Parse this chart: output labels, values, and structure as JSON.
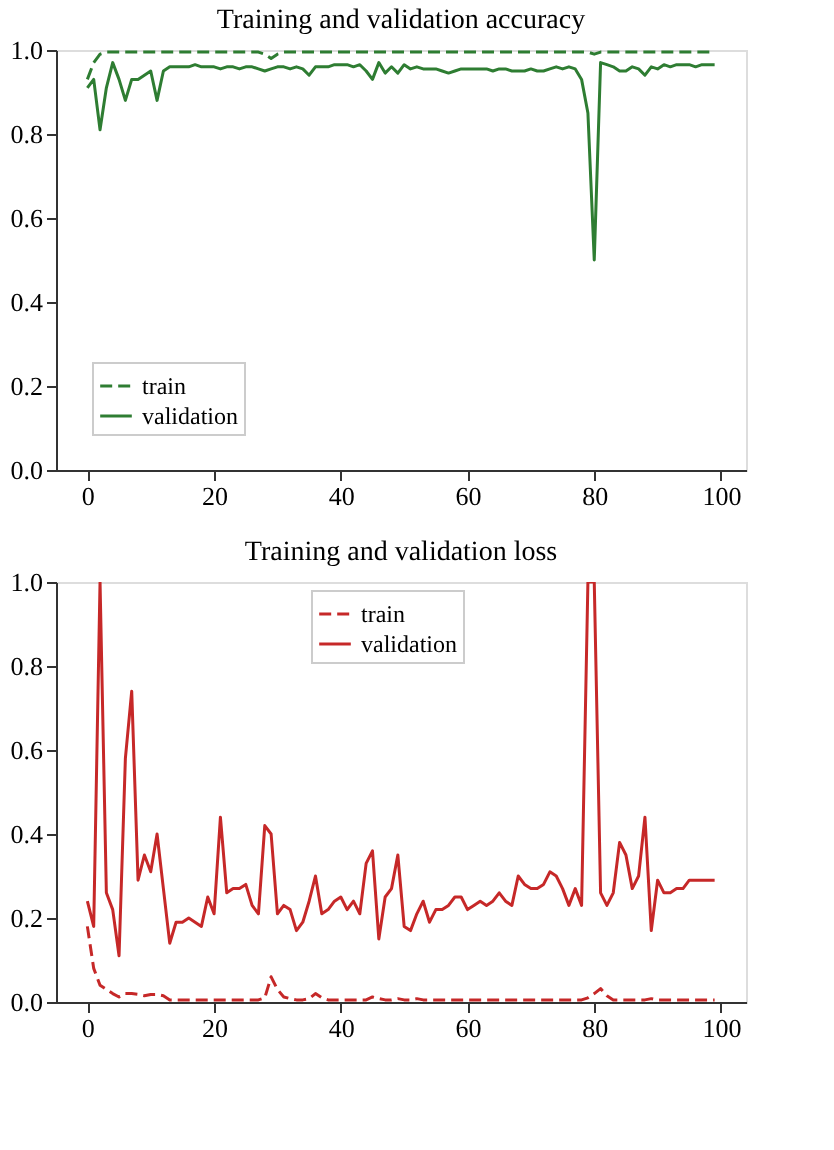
{
  "chart_data": [
    {
      "type": "line",
      "title": "Training and validation accuracy",
      "legend": "bottom left",
      "grid": false,
      "xlim": [
        -4.95,
        103.95
      ],
      "ylim": [
        0,
        1
      ],
      "xticks": [
        0,
        20,
        40,
        60,
        80,
        100
      ],
      "yticks": [
        {
          "value": 0,
          "label": "0.0"
        },
        {
          "value": 0.2,
          "label": "0.2"
        },
        {
          "value": 0.4,
          "label": "0.4"
        },
        {
          "value": 0.6,
          "label": "0.6"
        },
        {
          "value": 0.8,
          "label": "0.8"
        },
        {
          "value": 1,
          "label": "1.0"
        }
      ],
      "x": [
        0,
        1,
        2,
        3,
        4,
        5,
        6,
        7,
        8,
        9,
        10,
        11,
        12,
        13,
        14,
        15,
        16,
        17,
        18,
        19,
        20,
        21,
        22,
        23,
        24,
        25,
        26,
        27,
        28,
        29,
        30,
        31,
        32,
        33,
        34,
        35,
        36,
        37,
        38,
        39,
        40,
        41,
        42,
        43,
        44,
        45,
        46,
        47,
        48,
        49,
        50,
        51,
        52,
        53,
        54,
        55,
        56,
        57,
        58,
        59,
        60,
        61,
        62,
        63,
        64,
        65,
        66,
        67,
        68,
        69,
        70,
        71,
        72,
        73,
        74,
        75,
        76,
        77,
        78,
        79,
        80,
        81,
        82,
        83,
        84,
        85,
        86,
        87,
        88,
        89,
        90,
        91,
        92,
        93,
        94,
        95,
        96,
        97,
        98,
        99
      ],
      "series": [
        {
          "name": "train",
          "color": "#2e7d32",
          "line_style": "dashed",
          "values": [
            0.93,
            0.97,
            0.99,
            0.995,
            0.995,
            0.995,
            0.995,
            0.995,
            0.995,
            0.995,
            0.995,
            0.995,
            0.995,
            0.995,
            0.995,
            0.995,
            0.995,
            0.995,
            0.995,
            0.995,
            0.995,
            0.995,
            0.995,
            0.995,
            0.995,
            0.995,
            0.995,
            0.995,
            0.99,
            0.98,
            0.99,
            0.995,
            0.995,
            0.995,
            0.995,
            0.995,
            0.995,
            0.995,
            0.995,
            0.995,
            0.995,
            0.995,
            0.995,
            0.995,
            0.995,
            0.995,
            0.995,
            0.995,
            0.995,
            0.995,
            0.995,
            0.995,
            0.995,
            0.995,
            0.995,
            0.995,
            0.995,
            0.995,
            0.995,
            0.995,
            0.995,
            0.995,
            0.995,
            0.995,
            0.995,
            0.995,
            0.995,
            0.995,
            0.995,
            0.995,
            0.995,
            0.995,
            0.995,
            0.995,
            0.995,
            0.995,
            0.995,
            0.995,
            0.995,
            0.995,
            0.99,
            0.995,
            0.995,
            0.995,
            0.995,
            0.995,
            0.995,
            0.995,
            0.995,
            0.995,
            0.995,
            0.995,
            0.995,
            0.995,
            0.995,
            0.995,
            0.995,
            0.995,
            0.995,
            0.995
          ]
        },
        {
          "name": "validation",
          "color": "#2e7d32",
          "line_style": "solid",
          "values": [
            0.91,
            0.93,
            0.81,
            0.91,
            0.97,
            0.93,
            0.88,
            0.93,
            0.93,
            0.94,
            0.95,
            0.88,
            0.95,
            0.96,
            0.96,
            0.96,
            0.96,
            0.965,
            0.96,
            0.96,
            0.96,
            0.955,
            0.96,
            0.96,
            0.955,
            0.96,
            0.96,
            0.955,
            0.95,
            0.955,
            0.96,
            0.96,
            0.955,
            0.96,
            0.955,
            0.94,
            0.96,
            0.96,
            0.96,
            0.965,
            0.965,
            0.965,
            0.96,
            0.965,
            0.95,
            0.93,
            0.97,
            0.945,
            0.96,
            0.945,
            0.965,
            0.955,
            0.96,
            0.955,
            0.955,
            0.955,
            0.95,
            0.945,
            0.95,
            0.955,
            0.955,
            0.955,
            0.955,
            0.955,
            0.95,
            0.955,
            0.955,
            0.95,
            0.95,
            0.95,
            0.955,
            0.95,
            0.95,
            0.955,
            0.96,
            0.955,
            0.96,
            0.955,
            0.93,
            0.85,
            0.5,
            0.97,
            0.965,
            0.96,
            0.95,
            0.95,
            0.96,
            0.955,
            0.94,
            0.96,
            0.955,
            0.965,
            0.96,
            0.965,
            0.965,
            0.965,
            0.96,
            0.965,
            0.965,
            0.965
          ]
        }
      ]
    },
    {
      "type": "line",
      "title": "Training and validation loss",
      "legend": "top",
      "grid": false,
      "xlim": [
        -4.95,
        103.95
      ],
      "ylim": [
        0,
        1
      ],
      "xticks": [
        0,
        20,
        40,
        60,
        80,
        100
      ],
      "yticks": [
        {
          "value": 0,
          "label": "0.0"
        },
        {
          "value": 0.2,
          "label": "0.2"
        },
        {
          "value": 0.4,
          "label": "0.4"
        },
        {
          "value": 0.6,
          "label": "0.6"
        },
        {
          "value": 0.8,
          "label": "0.8"
        },
        {
          "value": 1,
          "label": "1.0"
        }
      ],
      "x": [
        0,
        1,
        2,
        3,
        4,
        5,
        6,
        7,
        8,
        9,
        10,
        11,
        12,
        13,
        14,
        15,
        16,
        17,
        18,
        19,
        20,
        21,
        22,
        23,
        24,
        25,
        26,
        27,
        28,
        29,
        30,
        31,
        32,
        33,
        34,
        35,
        36,
        37,
        38,
        39,
        40,
        41,
        42,
        43,
        44,
        45,
        46,
        47,
        48,
        49,
        50,
        51,
        52,
        53,
        54,
        55,
        56,
        57,
        58,
        59,
        60,
        61,
        62,
        63,
        64,
        65,
        66,
        67,
        68,
        69,
        70,
        71,
        72,
        73,
        74,
        75,
        76,
        77,
        78,
        79,
        80,
        81,
        82,
        83,
        84,
        85,
        86,
        87,
        88,
        89,
        90,
        91,
        92,
        93,
        94,
        95,
        96,
        97,
        98,
        99
      ],
      "series": [
        {
          "name": "train",
          "color": "#c62828",
          "line_style": "dashed",
          "values": [
            0.18,
            0.08,
            0.04,
            0.03,
            0.02,
            0.012,
            0.02,
            0.02,
            0.018,
            0.015,
            0.018,
            0.018,
            0.015,
            0.005,
            0.005,
            0.005,
            0.005,
            0.005,
            0.005,
            0.005,
            0.005,
            0.005,
            0.005,
            0.005,
            0.005,
            0.005,
            0.005,
            0.005,
            0.01,
            0.06,
            0.03,
            0.012,
            0.008,
            0.005,
            0.005,
            0.008,
            0.02,
            0.01,
            0.005,
            0.005,
            0.005,
            0.005,
            0.005,
            0.005,
            0.005,
            0.012,
            0.008,
            0.005,
            0.005,
            0.008,
            0.005,
            0.005,
            0.008,
            0.005,
            0.005,
            0.005,
            0.005,
            0.005,
            0.005,
            0.005,
            0.005,
            0.005,
            0.005,
            0.005,
            0.005,
            0.005,
            0.005,
            0.005,
            0.005,
            0.005,
            0.005,
            0.005,
            0.005,
            0.005,
            0.005,
            0.005,
            0.005,
            0.005,
            0.005,
            0.01,
            0.02,
            0.032,
            0.015,
            0.005,
            0.005,
            0.005,
            0.005,
            0.005,
            0.005,
            0.008,
            0.005,
            0.005,
            0.005,
            0.005,
            0.005,
            0.005,
            0.005,
            0.005,
            0.005,
            0.005
          ]
        },
        {
          "name": "validation",
          "color": "#c62828",
          "line_style": "solid",
          "values": [
            0.24,
            0.18,
            1.0,
            0.26,
            0.22,
            0.11,
            0.58,
            0.74,
            0.29,
            0.35,
            0.31,
            0.4,
            0.27,
            0.14,
            0.19,
            0.19,
            0.2,
            0.19,
            0.18,
            0.25,
            0.21,
            0.44,
            0.26,
            0.27,
            0.27,
            0.28,
            0.23,
            0.21,
            0.42,
            0.4,
            0.21,
            0.23,
            0.22,
            0.17,
            0.19,
            0.24,
            0.3,
            0.21,
            0.22,
            0.24,
            0.25,
            0.22,
            0.24,
            0.21,
            0.33,
            0.36,
            0.15,
            0.25,
            0.27,
            0.35,
            0.18,
            0.17,
            0.21,
            0.24,
            0.19,
            0.22,
            0.22,
            0.23,
            0.25,
            0.25,
            0.22,
            0.23,
            0.24,
            0.23,
            0.24,
            0.26,
            0.24,
            0.23,
            0.3,
            0.28,
            0.27,
            0.27,
            0.28,
            0.31,
            0.3,
            0.27,
            0.23,
            0.27,
            0.23,
            1.0,
            1.0,
            0.26,
            0.23,
            0.26,
            0.38,
            0.35,
            0.27,
            0.3,
            0.44,
            0.17,
            0.29,
            0.26,
            0.26,
            0.27,
            0.27,
            0.29,
            0.29,
            0.29,
            0.29,
            0.29
          ]
        }
      ]
    }
  ]
}
